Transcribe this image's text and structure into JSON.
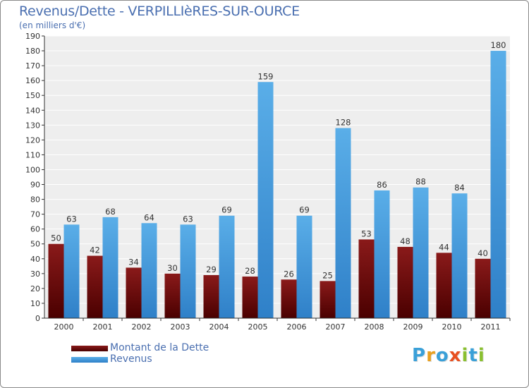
{
  "header": {
    "title": "Revenus/Dette - VERPILLIèRES-SUR-OURCE",
    "subtitle": "(en milliers d'€)"
  },
  "legend": {
    "dette_label": "Montant de la Dette",
    "revenus_label": "Revenus"
  },
  "logo": {
    "text": "Proxiti",
    "letters": [
      {
        "ch": "P",
        "color": "#3aa0d8"
      },
      {
        "ch": "r",
        "color": "#e8a020"
      },
      {
        "ch": "o",
        "color": "#3aa0d8"
      },
      {
        "ch": "x",
        "color": "#e85020"
      },
      {
        "ch": "i",
        "color": "#8ac030"
      },
      {
        "ch": "t",
        "color": "#3aa0d8"
      },
      {
        "ch": "i",
        "color": "#8ac030"
      }
    ]
  },
  "colors": {
    "dette": "#6b0b0b",
    "revenus": "#4fa3e3",
    "text": "#4a6fb0"
  },
  "chart_data": {
    "type": "bar",
    "title": "Revenus/Dette - VERPILLIèRES-SUR-OURCE",
    "subtitle": "(en milliers d'€)",
    "xlabel": "",
    "ylabel": "",
    "ylim": [
      0,
      190
    ],
    "yticks": [
      0,
      10,
      20,
      30,
      40,
      50,
      60,
      70,
      80,
      90,
      100,
      110,
      120,
      130,
      140,
      150,
      160,
      170,
      180,
      190
    ],
    "grid": true,
    "legend_position": "bottom-left",
    "categories": [
      "2000",
      "2001",
      "2002",
      "2003",
      "2004",
      "2005",
      "2006",
      "2007",
      "2008",
      "2009",
      "2010",
      "2011"
    ],
    "series": [
      {
        "name": "Montant de la Dette",
        "values": [
          50,
          42,
          34,
          30,
          29,
          28,
          26,
          25,
          53,
          48,
          44,
          40
        ]
      },
      {
        "name": "Revenus",
        "values": [
          63,
          68,
          64,
          63,
          69,
          159,
          69,
          128,
          86,
          88,
          84,
          180
        ]
      }
    ]
  }
}
